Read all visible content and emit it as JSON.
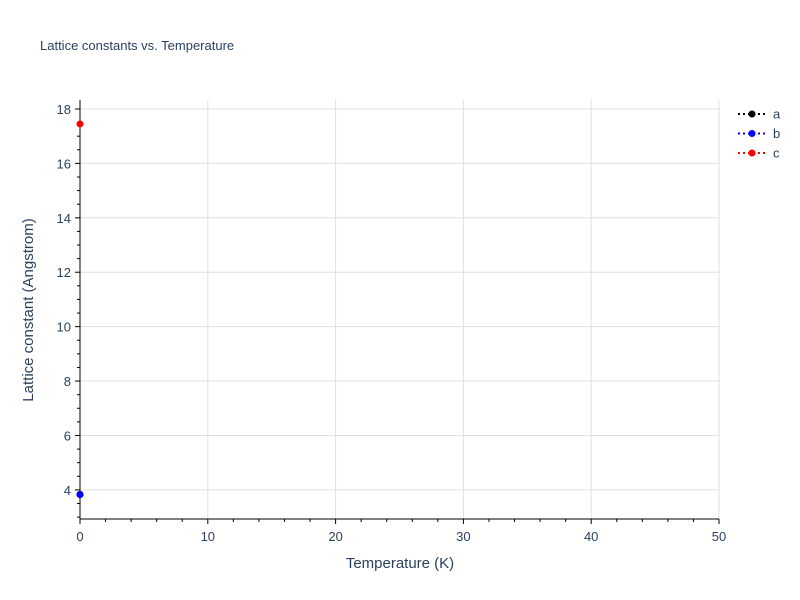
{
  "chart_data": {
    "type": "line",
    "title": "Lattice constants vs. Temperature",
    "xlabel": "Temperature (K)",
    "ylabel": "Lattice constant (Angstrom)",
    "xlim": [
      0,
      50
    ],
    "ylim": [
      2.93,
      18.33
    ],
    "xticks": [
      0,
      10,
      20,
      30,
      40,
      50
    ],
    "yticks": [
      4,
      6,
      8,
      10,
      12,
      14,
      16,
      18
    ],
    "grid": true,
    "legend_position": "top-right",
    "line_style": "dotted",
    "series": [
      {
        "name": "a",
        "color": "#000000",
        "x": [
          0
        ],
        "y": [
          3.83
        ]
      },
      {
        "name": "b",
        "color": "#0000ff",
        "x": [
          0
        ],
        "y": [
          3.83
        ]
      },
      {
        "name": "c",
        "color": "#ff0000",
        "x": [
          0
        ],
        "y": [
          17.45
        ]
      }
    ]
  }
}
